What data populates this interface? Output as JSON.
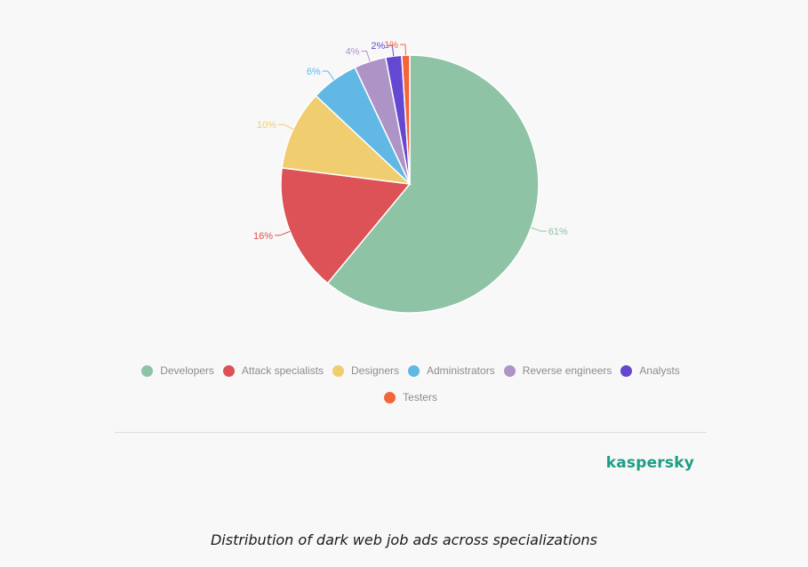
{
  "chart_data": {
    "type": "pie",
    "categories": [
      "Developers",
      "Attack specialists",
      "Designers",
      "Administrators",
      "Reverse engineers",
      "Analysts",
      "Testers"
    ],
    "values": [
      61,
      16,
      10,
      6,
      4,
      2,
      1
    ],
    "data_labels": [
      "61%",
      "16%",
      "10%",
      "6%",
      "4%",
      "2%",
      "1%"
    ],
    "colors": [
      "#8fc3a6",
      "#dc5256",
      "#f0cd6f",
      "#62b8e4",
      "#ae93c7",
      "#6448d2",
      "#f4663a"
    ],
    "legend_position": "bottom",
    "title": ""
  },
  "legend": {
    "items": [
      {
        "label": "Developers",
        "color": "#8fc3a6"
      },
      {
        "label": "Attack specialists",
        "color": "#dc5256"
      },
      {
        "label": "Designers",
        "color": "#f0cd6f"
      },
      {
        "label": "Administrators",
        "color": "#62b8e4"
      },
      {
        "label": "Reverse engineers",
        "color": "#ae93c7"
      },
      {
        "label": "Analysts",
        "color": "#6448d2"
      },
      {
        "label": "Testers",
        "color": "#f4663a"
      }
    ]
  },
  "brand": {
    "name": "kaspersky",
    "color": "#1d9d84"
  },
  "caption": "Distribution of dark web job ads across specializations"
}
